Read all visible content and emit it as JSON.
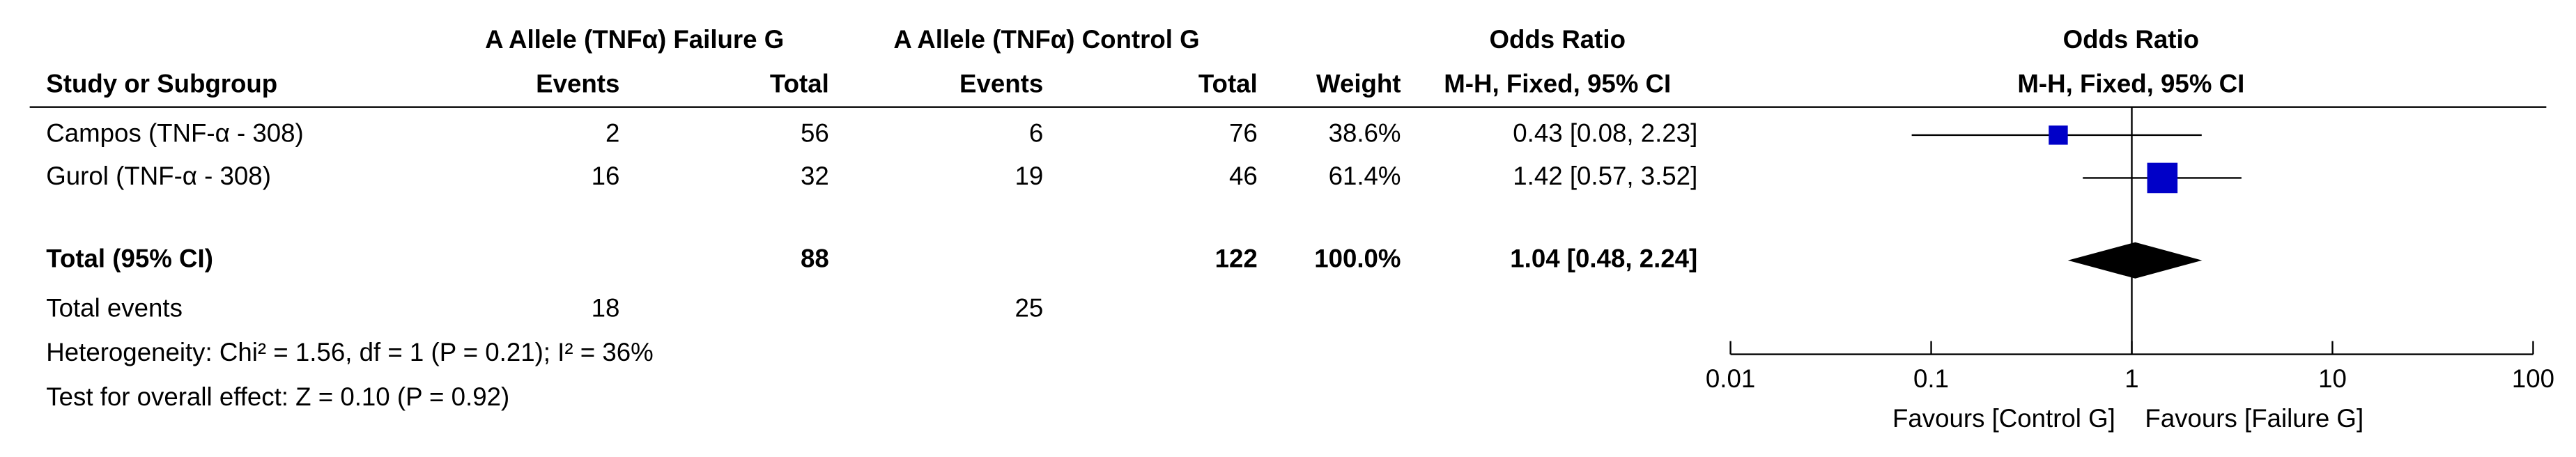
{
  "chart_data": {
    "type": "forest",
    "group_headers": [
      "A Allele (TNFα) Failure G",
      "A Allele (TNFα) Control G"
    ],
    "columns": [
      "Study or Subgroup",
      "Events",
      "Total",
      "Events",
      "Total",
      "Weight"
    ],
    "effect_header": [
      "Odds Ratio",
      "M-H, Fixed, 95% CI"
    ],
    "plot_header": [
      "Odds Ratio",
      "M-H, Fixed, 95% CI"
    ],
    "studies": [
      {
        "name": "Campos (TNF-α - 308)",
        "events_1": 2,
        "total_1": 56,
        "events_2": 6,
        "total_2": 76,
        "weight": 38.6,
        "weight_label": "38.6%",
        "or": 0.43,
        "ci": [
          0.08,
          2.23
        ],
        "or_label": "0.43 [0.08, 2.23]"
      },
      {
        "name": "Gurol (TNF-α - 308)",
        "events_1": 16,
        "total_1": 32,
        "events_2": 19,
        "total_2": 46,
        "weight": 61.4,
        "weight_label": "61.4%",
        "or": 1.42,
        "ci": [
          0.57,
          3.52
        ],
        "or_label": "1.42 [0.57, 3.52]"
      }
    ],
    "total": {
      "name": "Total (95% CI)",
      "total_1": 88,
      "total_2": 122,
      "weight": 100.0,
      "weight_label": "100.0%",
      "or": 1.04,
      "ci": [
        0.48,
        2.24
      ],
      "or_label": "1.04 [0.48, 2.24]"
    },
    "total_events": {
      "name": "Total events",
      "events_1": 18,
      "events_2": 25
    },
    "heterogeneity": "Heterogeneity: Chi² = 1.56, df = 1 (P = 0.21); I² = 36%",
    "overall_effect": "Test for overall effect: Z = 0.10 (P = 0.92)",
    "xlim": [
      0.01,
      100
    ],
    "xticks": [
      0.01,
      0.1,
      1,
      10,
      100
    ],
    "log_x": true,
    "xlabel_left": "Favours [Control G]",
    "xlabel_right": "Favours [Failure G]",
    "marker_color": "#0000c8"
  }
}
